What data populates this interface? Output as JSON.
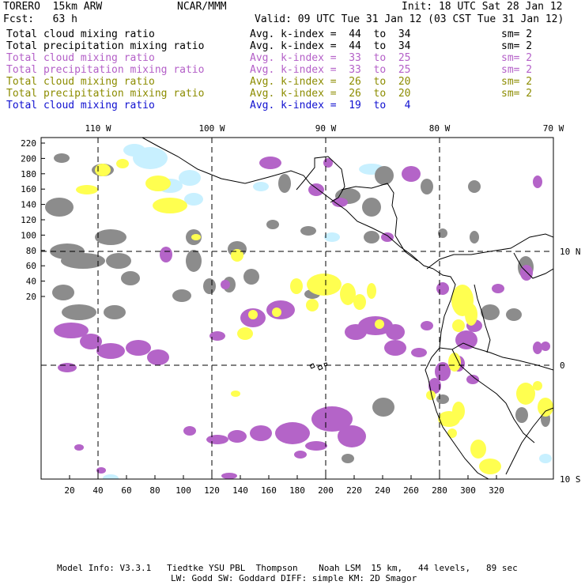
{
  "header": {
    "model": "TORERO  15km ARW",
    "org": "NCAR/MMM",
    "init": "Init: 18 UTC Sat 28 Jan 12",
    "fcst": "Fcst:   63 h",
    "valid": "Valid: 09 UTC Tue 31 Jan 12 (03 CST Tue 31 Jan 12)"
  },
  "legend": [
    {
      "field": "Total cloud mixing ratio",
      "kindex": "Avg. k-index =  44  to  34",
      "sm": "sm= 2",
      "color": "#000000"
    },
    {
      "field": "Total precipitation mixing ratio",
      "kindex": "Avg. k-index =  44  to  34",
      "sm": "sm= 2",
      "color": "#000000"
    },
    {
      "field": "Total cloud mixing ratio",
      "kindex": "Avg. k-index =  33  to  25",
      "sm": "sm= 2",
      "color": "#b460c8"
    },
    {
      "field": "Total precipitation mixing ratio",
      "kindex": "Avg. k-index =  33  to  25",
      "sm": "sm= 2",
      "color": "#b460c8"
    },
    {
      "field": "Total cloud mixing ratio",
      "kindex": "Avg. k-index =  26  to  20",
      "sm": "sm= 2",
      "color": "#8c8c00"
    },
    {
      "field": "Total precipitation mixing ratio",
      "kindex": "Avg. k-index =  26  to  20",
      "sm": "sm= 2",
      "color": "#8c8c00"
    },
    {
      "field": "Total cloud mixing ratio",
      "kindex": "Avg. k-index =  19  to   4",
      "sm": "",
      "color": "#1010d0"
    }
  ],
  "map": {
    "top_lon_labels": [
      "110 W",
      "100 W",
      "90 W",
      "80 W",
      "70 W"
    ],
    "right_lat_labels": [
      "10 N",
      "0",
      "10 S"
    ],
    "left_ticks": [
      "220",
      "200",
      "180",
      "160",
      "140",
      "120",
      "100",
      "80",
      "60",
      "40",
      "20"
    ],
    "bottom_ticks": [
      "20",
      "40",
      "60",
      "80",
      "100",
      "120",
      "140",
      "160",
      "180",
      "200",
      "220",
      "240",
      "260",
      "280",
      "300",
      "320"
    ],
    "fill_colors": {
      "gray": "#8c8c8c",
      "purple": "#b464c8",
      "yellow": "#ffff50",
      "lightblue": "#c8f0ff"
    }
  },
  "footer": {
    "line1": "Model Info: V3.3.1   Tiedtke YSU PBL  Thompson    Noah LSM  15 km,   44 levels,   89 sec",
    "line2": "LW: Godd SW: Goddard DIFF: simple KM: 2D Smagor"
  }
}
